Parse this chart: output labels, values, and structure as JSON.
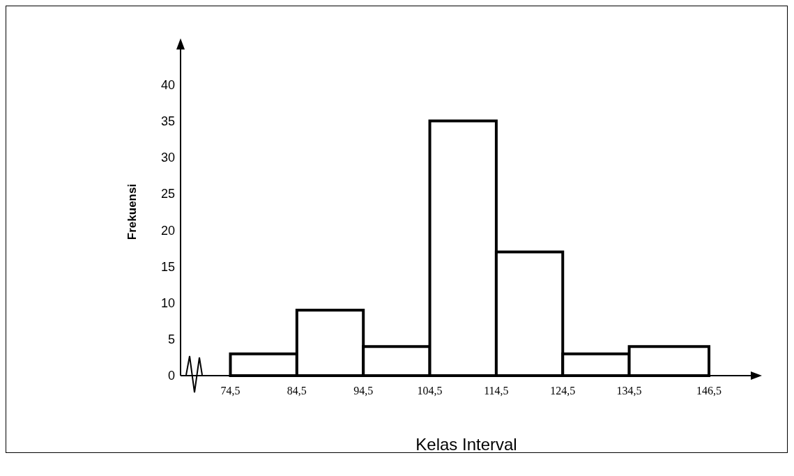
{
  "chart_data": {
    "type": "histogram",
    "xlabel": "Kelas Interval",
    "ylabel": "Frekuensi",
    "bins": [
      74.5,
      84.5,
      94.5,
      104.5,
      114.5,
      124.5,
      134.5,
      146.5
    ],
    "values": [
      3,
      9,
      4,
      35,
      17,
      3,
      4
    ],
    "color": "#ffffff",
    "xlim": [
      67,
      153
    ],
    "ylim": [
      0,
      45
    ],
    "xticks": [
      {
        "value": 74.5,
        "label": "74,5"
      },
      {
        "value": 84.5,
        "label": "84,5"
      },
      {
        "value": 94.5,
        "label": "94,5"
      },
      {
        "value": 104.5,
        "label": "104,5"
      },
      {
        "value": 114.5,
        "label": "114,5"
      },
      {
        "value": 124.5,
        "label": "124,5"
      },
      {
        "value": 134.5,
        "label": "134,5"
      },
      {
        "value": 146.5,
        "label": "146,5"
      }
    ],
    "yticks": [
      0,
      5,
      10,
      15,
      20,
      25,
      30,
      35,
      40
    ],
    "grid": false
  }
}
